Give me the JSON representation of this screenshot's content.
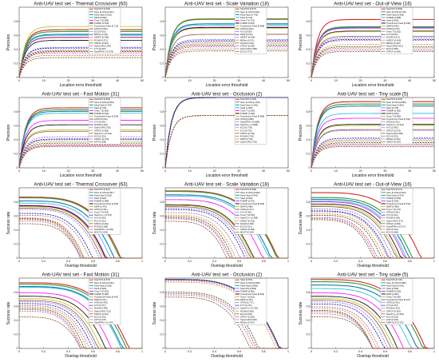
{
  "figure": {
    "tracker_colors": [
      "#d62728",
      "#2ca02c",
      "#1f77b4",
      "#17becf",
      "#ff00ff",
      "#000000",
      "#bcbd22",
      "#8c564b",
      "#7b68ee",
      "#00008b",
      "#9467bd",
      "#ff7f0e",
      "#006400",
      "#ff1493",
      "#808080",
      "#8b4513"
    ],
    "dashed_from_index": 8
  },
  "chart_data": [
    {
      "type": "line",
      "metric": "precision",
      "title": "Anti-UAV test set - Thermal Crossover (63)",
      "xlabel": "Location error threshold",
      "ylabel": "Precision",
      "xlim": [
        0,
        50
      ],
      "ylim": [
        0,
        1
      ],
      "xticks": [
        "0",
        "10",
        "20",
        "30",
        "40",
        "50"
      ],
      "yticks": [
        "0",
        "0.2",
        "0.4",
        "0.6",
        "0.8"
      ],
      "legend": [
        "SiamSTA [0.666]",
        "Siam R-CNN [0.641]",
        "KeepTrack [0.602]",
        "DiMP [0.590]",
        "Trans T [0.558]",
        "PrDiMP [0.519]",
        "TransformerTrack [0.712]",
        "ATOM [0.563]",
        "ECO [0.421]",
        "MDNet [0.411]",
        "ASRCF [0.380]",
        "RCAM [0.371]",
        "STRCF [0.361]",
        "SiamCAR [0.344]",
        "KYS [0.310]",
        "SiamRPN++ [0.278]"
      ],
      "series": [
        {
          "name": "SiamSTA",
          "values": [
            0.666,
            0.666,
            0.666
          ]
        },
        {
          "name": "Siam R-CNN",
          "values": [
            0.641,
            0.641,
            0.641
          ]
        },
        {
          "name": "KeepTrack",
          "values": [
            0.602,
            0.602,
            0.602
          ]
        },
        {
          "name": "DiMP",
          "values": [
            0.59,
            0.59,
            0.59
          ]
        }
      ]
    },
    {
      "type": "line",
      "metric": "precision",
      "title": "Anti-UAV test set - Scale Variation (18)",
      "xlabel": "Location error threshold",
      "ylabel": "Precision",
      "xlim": [
        0,
        50
      ],
      "ylim": [
        0,
        1
      ],
      "xticks": [
        "0",
        "10",
        "20",
        "30",
        "40",
        "50"
      ],
      "yticks": [
        "0",
        "0.2",
        "0.4",
        "0.6",
        "0.8"
      ],
      "legend": [
        "SiamSTA [0.817]",
        "Siam R-CNN [0.811]",
        "KeepTrack [0.749]",
        "Stark [0.732]",
        "Trans T [0.701]",
        "PrDiMP [0.697]",
        "TransformerTrack [0.688]",
        "ATOM [0.602]",
        "KYS [0.530]",
        "DiMP [0.512]",
        "ASRCF [0.490]",
        "MDNet [0.471]",
        "RCAM [0.452]",
        "STRCF [0.430]",
        "SiamCAR [0.398]",
        "ECO [0.371]"
      ],
      "series": []
    },
    {
      "type": "line",
      "metric": "precision",
      "title": "Anti-UAV test set - Out-of-View (16)",
      "xlabel": "Location error threshold",
      "ylabel": "Precision",
      "xlim": [
        0,
        50
      ],
      "ylim": [
        0,
        1
      ],
      "xticks": [
        "0",
        "10",
        "20",
        "30",
        "40",
        "50"
      ],
      "yticks": [
        "0",
        "0.2",
        "0.4",
        "0.6",
        "0.8"
      ],
      "legend": [
        "SiamSTA [0.809]",
        "Siam R-CNN [0.708]",
        "KeepTrack [0.695]",
        "PrDiMP [0.688]",
        "Stark [0.690]",
        "TransformerTrack [0.648]",
        "DiMP [0.640]",
        "ATOM [0.575]",
        "Trans T [0.551]",
        "KYS [0.531]",
        "RCAM [0.517]",
        "ASRCF [0.460]",
        "MDNet [0.432]",
        "SiamCAR [0.412]",
        "ECO [0.385]",
        "STRCF [0.364]"
      ],
      "series": []
    },
    {
      "type": "line",
      "metric": "precision",
      "title": "Anti-UAV test set - Fast Motion (31)",
      "xlabel": "Location error threshold",
      "ylabel": "Precision",
      "xlim": [
        0,
        50
      ],
      "ylim": [
        0,
        1
      ],
      "xticks": [
        "0",
        "10",
        "20",
        "30",
        "40",
        "50"
      ],
      "yticks": [
        "0",
        "0.2",
        "0.4",
        "0.6",
        "0.8"
      ],
      "legend": [
        "SiamSTA [0.836]",
        "Siam R-CNN [0.809]",
        "KeepTrack [0.787]",
        "Stark [0.760]",
        "Trans T [0.662]",
        "PrDiMP [0.600]",
        "TransformerTrack [0.529]",
        "ATOM [0.510]",
        "KYS [0.433]",
        "RCAM [0.402]",
        "SiamCAR [0.391]",
        "STRCF [0.366]",
        "SiamFC++ [0.344]",
        "ECO [0.321]",
        "ASRCF [0.310]",
        "HIFT [0.298]"
      ],
      "series": []
    },
    {
      "type": "line",
      "metric": "precision",
      "title": "Anti-UAV test set - Occlusion (2)",
      "xlabel": "Location error threshold",
      "ylabel": "Precision",
      "xlim": [
        0,
        50
      ],
      "ylim": [
        0,
        1
      ],
      "xticks": [
        "0",
        "10",
        "20",
        "30",
        "40",
        "50"
      ],
      "yticks": [
        "0",
        "0.2",
        "0.4",
        "0.6",
        "0.8"
      ],
      "legend": [
        "SiamSTA [1.000]",
        "Siam R-CNN [1.000]",
        "KeepTrack [1.000]",
        "Stark [1.000]",
        "Trans T [1.000]",
        "PrDiMP [1.000]",
        "TransformerTrack [0.988]",
        "ATOM [0.988]",
        "SiamRPN++ [0.988]",
        "SiamFC++ [0.988]",
        "ECO [0.730]",
        "KYS [0.730]",
        "STRCF [0.730]",
        "RCAM [0.730]",
        "DiMP [0.730]",
        "SiamCAR [0.730]"
      ],
      "series": []
    },
    {
      "type": "line",
      "metric": "precision",
      "title": "Anti-UAV test set - Tiny scale (5)",
      "xlabel": "Location error threshold",
      "ylabel": "Precision",
      "xlim": [
        0,
        50
      ],
      "ylim": [
        0,
        1
      ],
      "xticks": [
        "0",
        "10",
        "20",
        "30",
        "40",
        "50"
      ],
      "yticks": [
        "0",
        "0.2",
        "0.4",
        "0.6",
        "0.8"
      ],
      "legend": [
        "SiamSTA [0.923]",
        "Siam R-CNN [0.889]",
        "KeepTrack [0.861]",
        "Stark [0.758]",
        "PrDiMP [0.691]",
        "DiMP [0.605]",
        "Trans T [0.590]",
        "TransformerTrack [0.533]",
        "ATOM [0.521]",
        "SiamFC++ [0.413]",
        "KYS [0.390]",
        "STRCF [0.372]",
        "SiamCAR [0.350]",
        "ECO [0.331]",
        "MDNet [0.312]",
        "ASRCF [0.297]"
      ],
      "series": []
    },
    {
      "type": "line",
      "metric": "success",
      "title": "Anti-UAV test set - Thermal Crossover (63)",
      "xlabel": "Overlap threshold",
      "ylabel": "Success rate",
      "xlim": [
        0,
        1
      ],
      "ylim": [
        0,
        1
      ],
      "xticks": [
        "0",
        "0.2",
        "0.4",
        "0.6",
        "0.8",
        "1"
      ],
      "yticks": [
        "0",
        "0.2",
        "0.4",
        "0.6",
        "0.8"
      ],
      "legend": [
        "SiamSTA [0.607]",
        "Siam R-CNN [0.597]",
        "KeepTrack [0.553]",
        "Stark [0.522]",
        "PrDiMP [0.488]",
        "TransformerTrack [0.482]",
        "DiMP [0.470]",
        "ATOM [0.451]",
        "Trans T [0.432]",
        "SiamFC++ [0.376]",
        "KYS [0.350]",
        "ECO [0.312]",
        "STRCF [0.301]",
        "RCAM [0.288]",
        "SiamRPN++ [0.266]",
        "MACF [0.229]"
      ],
      "series": []
    },
    {
      "type": "line",
      "metric": "success",
      "title": "Anti-UAV test set - Scale Variation (18)",
      "xlabel": "Overlap threshold",
      "ylabel": "Success rate",
      "xlim": [
        0,
        1
      ],
      "ylim": [
        0,
        1
      ],
      "xticks": [
        "0",
        "0.2",
        "0.4",
        "0.6",
        "0.8",
        "1"
      ],
      "yticks": [
        "0",
        "0.2",
        "0.4",
        "0.6",
        "0.8"
      ],
      "legend": [
        "SiamSTA [0.696]",
        "Siam R-CNN [0.688]",
        "KeepTrack [0.640]",
        "Stark [0.622]",
        "PrDiMP [0.571]",
        "TransformerTrack [0.499]",
        "DiMP [0.488]",
        "ATOM [0.471]",
        "KYS [0.451]",
        "Trans T [0.430]",
        "SiamFC++ [0.388]",
        "ASRCF [0.352]",
        "RCAM [0.330]",
        "ECO [0.311]",
        "STRCF [0.299]",
        "MACF [0.264]"
      ],
      "series": []
    },
    {
      "type": "line",
      "metric": "success",
      "title": "Anti-UAV test set - Out-of-View (16)",
      "xlabel": "Overlap threshold",
      "ylabel": "Success rate",
      "xlim": [
        0,
        1
      ],
      "ylim": [
        0,
        1
      ],
      "xticks": [
        "0",
        "0.2",
        "0.4",
        "0.6",
        "0.8",
        "1"
      ],
      "yticks": [
        "0",
        "0.2",
        "0.4",
        "0.6",
        "0.8"
      ],
      "legend": [
        "SiamSTA [0.671]",
        "Siam R-CNN [0.602]",
        "KeepTrack [0.576]",
        "PrDiMP [0.553]",
        "Stark [0.540]",
        "TransformerTrack [0.510]",
        "DiMP [0.488]",
        "Trans T [0.472]",
        "ATOM [0.441]",
        "KYS [0.412]",
        "RCAM [0.400]",
        "SiamCAR [0.371]",
        "STRCF [0.350]",
        "SiamRPN++ [0.317]",
        "HIFT [0.301]",
        "ECO [0.286]"
      ],
      "series": []
    },
    {
      "type": "line",
      "metric": "success",
      "title": "Anti-UAV test set - Fast Motion (31)",
      "xlabel": "Overlap threshold",
      "ylabel": "Success rate",
      "xlim": [
        0,
        1
      ],
      "ylim": [
        0,
        1
      ],
      "xticks": [
        "0",
        "0.2",
        "0.4",
        "0.6",
        "0.8",
        "1"
      ],
      "yticks": [
        "0",
        "0.2",
        "0.4",
        "0.6",
        "0.8"
      ],
      "legend": [
        "SiamSTA [0.673]",
        "Siam R-CNN [0.652]",
        "KeepTrack [0.620]",
        "Stark [0.609]",
        "Trans T [0.530]",
        "PrDiMP [0.482]",
        "TransformerTrack [0.447]",
        "DiMP [0.421]",
        "ATOM [0.403]",
        "KYS [0.377]",
        "RCAM [0.350]",
        "SiamCAR [0.331]",
        "STRCF [0.310]",
        "ECO [0.291]",
        "HIFT [0.270]",
        "SiamRPN++ [0.187]"
      ],
      "series": []
    },
    {
      "type": "line",
      "metric": "success",
      "title": "Anti-UAV test set - Occlusion (2)",
      "xlabel": "Overlap threshold",
      "ylabel": "Success rate",
      "xlim": [
        0,
        1
      ],
      "ylim": [
        0,
        1
      ],
      "xticks": [
        "0",
        "0.2",
        "0.4",
        "0.6",
        "0.8",
        "1"
      ],
      "yticks": [
        "0",
        "0.2",
        "0.4",
        "0.6",
        "0.8"
      ],
      "legend": [
        "Stark [0.874]",
        "Siam R-CNN [0.868]",
        "KeepTrack [0.866]",
        "SiamSTA [0.862]",
        "PrDiMP [0.851]",
        "TransformerTrack [0.822]",
        "Trans T [0.812]",
        "DiMP [0.784]",
        "ATOM [0.771]",
        "KYS [0.741]",
        "SiamFC++ [0.700]",
        "RCAM [0.682]",
        "ECO [0.540]",
        "STRCF [0.520]",
        "SiamCAR [0.500]",
        "MDNet [0.470]"
      ],
      "series": []
    },
    {
      "type": "line",
      "metric": "success",
      "title": "Anti-UAV test set - Tiny scale (5)",
      "xlabel": "Overlap threshold",
      "ylabel": "Success rate",
      "xlim": [
        0,
        1
      ],
      "ylim": [
        0,
        1
      ],
      "xticks": [
        "0",
        "0.2",
        "0.4",
        "0.6",
        "0.8",
        "1"
      ],
      "yticks": [
        "0",
        "0.2",
        "0.4",
        "0.6",
        "0.8"
      ],
      "legend": [
        "SiamSTA [0.723]",
        "Siam R-CNN [0.688]",
        "KeepTrack [0.641]",
        "Stark [0.592]",
        "PrDiMP [0.530]",
        "DiMP [0.481]",
        "Trans T [0.450]",
        "TransformerTrack [0.427]",
        "ATOM [0.401]",
        "KYS [0.372]",
        "RCAM [0.331]",
        "STRCF [0.310]",
        "SiamFC++ [0.281]",
        "ECO [0.262]",
        "HIFT [0.233]",
        "CMR-DCF [0.191]"
      ],
      "series": []
    }
  ]
}
